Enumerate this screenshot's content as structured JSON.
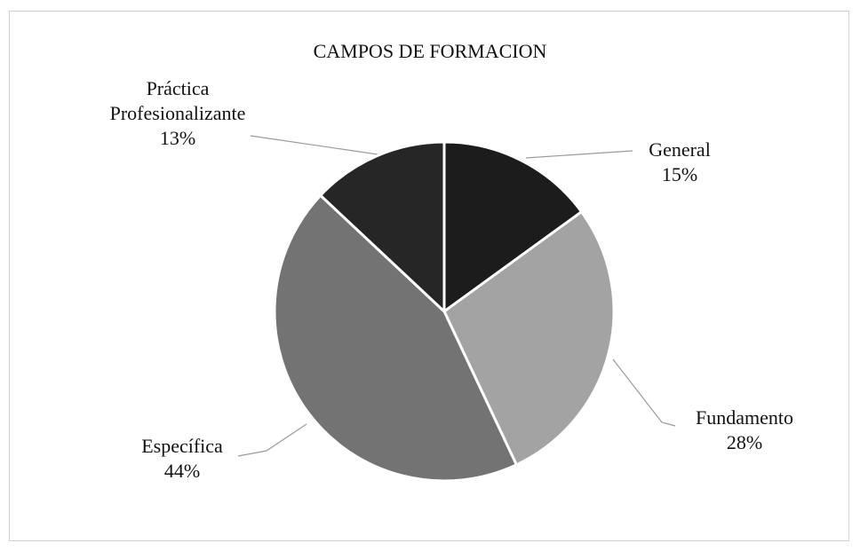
{
  "chart_data": {
    "type": "pie",
    "title": "CAMPOS DE FORMACION",
    "categories": [
      "General",
      "Fundamento",
      "Específica",
      "Práctica Profesionalizante"
    ],
    "values": [
      15,
      28,
      44,
      13
    ],
    "value_labels": [
      "15%",
      "28%",
      "44%",
      "13%"
    ],
    "colors": [
      "#1c1c1c",
      "#a3a3a3",
      "#737373",
      "#262626"
    ]
  }
}
